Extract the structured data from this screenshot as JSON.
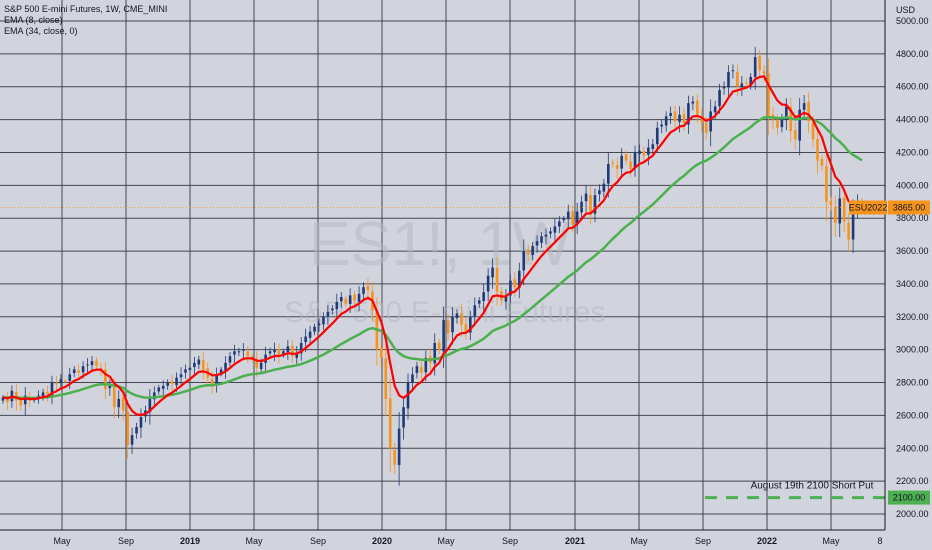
{
  "header": {
    "symbol_line": "S&P 500 E-mini Futures, 1W, CME_MINI",
    "indicators": [
      "EMA (8, close)",
      "EMA (34, close, 0)"
    ]
  },
  "watermark": {
    "ticker": "ES1!, 1W",
    "name": "S&P 500 E-mini Futures"
  },
  "colors": {
    "background": "#d1d4dc",
    "grid": "#434651",
    "candle_up": "#1e3a78",
    "candle_down": "#f7931a",
    "ema_fast": "#ff0000",
    "ema_slow": "#4caf50",
    "price_badge": "#f7931a",
    "level_line": "#4caf50"
  },
  "chart_data": {
    "type": "candlestick",
    "interval": "1W",
    "unit": "USD",
    "ylim": [
      1900,
      5100
    ],
    "y_ticks": [
      2000,
      2200,
      2400,
      2600,
      2800,
      3000,
      3200,
      3400,
      3600,
      3800,
      4000,
      4200,
      4400,
      4600,
      4800,
      5000
    ],
    "x_ticks": [
      "May",
      "Sep",
      "2019",
      "May",
      "Sep",
      "2020",
      "May",
      "Sep",
      "2021",
      "May",
      "Sep",
      "2022",
      "May",
      "8"
    ],
    "closes": [
      2710,
      2680,
      2750,
      2690,
      2660,
      2720,
      2690,
      2700,
      2720,
      2740,
      2730,
      2800,
      2790,
      2820,
      2810,
      2850,
      2880,
      2860,
      2900,
      2910,
      2930,
      2900,
      2880,
      2760,
      2780,
      2650,
      2700,
      2630,
      2420,
      2480,
      2530,
      2590,
      2630,
      2700,
      2740,
      2770,
      2780,
      2800,
      2790,
      2830,
      2850,
      2880,
      2890,
      2920,
      2940,
      2880,
      2830,
      2790,
      2850,
      2880,
      2920,
      2960,
      2990,
      2990,
      3000,
      2960,
      2940,
      2890,
      2920,
      2970,
      2990,
      3000,
      2960,
      2990,
      3020,
      2960,
      2980,
      3040,
      3080,
      3110,
      3140,
      3160,
      3200,
      3230,
      3250,
      3290,
      3320,
      3280,
      3330,
      3300,
      3340,
      3380,
      3360,
      3240,
      3000,
      2950,
      2700,
      2400,
      2300,
      2520,
      2650,
      2800,
      2850,
      2900,
      2860,
      2950,
      2920,
      3040,
      3000,
      3180,
      3100,
      3200,
      3220,
      3150,
      3110,
      3200,
      3270,
      3300,
      3350,
      3450,
      3500,
      3350,
      3300,
      3330,
      3420,
      3380,
      3480,
      3600,
      3580,
      3630,
      3660,
      3690,
      3700,
      3720,
      3750,
      3780,
      3800,
      3840,
      3760,
      3840,
      3900,
      3950,
      3830,
      3940,
      3970,
      4010,
      4130,
      4130,
      4100,
      4180,
      4150,
      4100,
      4200,
      4210,
      4180,
      4230,
      4250,
      4350,
      4370,
      4420,
      4440,
      4390,
      4430,
      4380,
      4500,
      4510,
      4430,
      4380,
      4320,
      4450,
      4480,
      4580,
      4600,
      4690,
      4700,
      4600,
      4620,
      4620,
      4660,
      4780,
      4700,
      4680,
      4420,
      4400,
      4350,
      4410,
      4480,
      4330,
      4280,
      4460,
      4500,
      4390,
      4280,
      4150,
      4120,
      3900,
      3880,
      3770,
      3920,
      3780,
      3670,
      3850,
      3900,
      3865
    ],
    "current_price": {
      "label": "ESU2022",
      "value": 3865.0,
      "display": "3865.00"
    },
    "level": {
      "value": 2100.0,
      "display": "2100.00",
      "annotation": "August 19th 2100 Short Put"
    },
    "series": [
      {
        "name": "EMA (8, close)",
        "period": 8
      },
      {
        "name": "EMA (34, close, 0)",
        "period": 34
      }
    ]
  }
}
